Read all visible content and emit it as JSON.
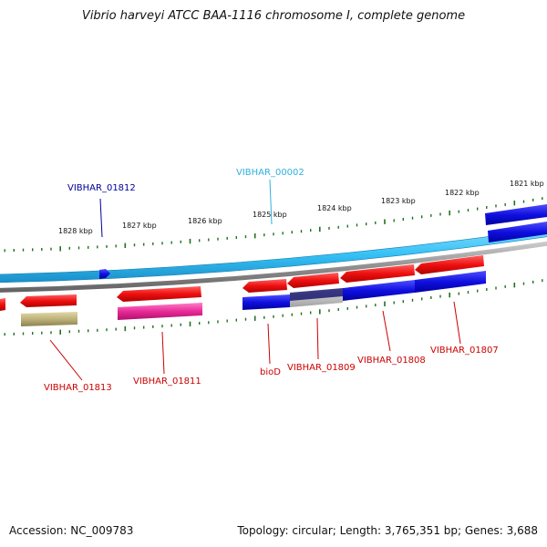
{
  "title": "Vibrio harveyi ATCC BAA-1116 chromosome I, complete genome",
  "footer": {
    "accession": "Accession: NC_009783",
    "stats": "Topology: circular; Length: 3,765,351 bp; Genes: 3,688"
  },
  "ruler_ticks": [
    "1828 kbp",
    "1827 kbp",
    "1826 kbp",
    "1825 kbp",
    "1824 kbp",
    "1823 kbp",
    "1822 kbp",
    "1821 kbp"
  ],
  "gene_labels": [
    "VIBHAR_01812",
    "VIBHAR_00002",
    "VIBHAR_01813",
    "VIBHAR_01811",
    "bioD",
    "VIBHAR_01809",
    "VIBHAR_01808",
    "VIBHAR_01807"
  ],
  "colors": {
    "forward_track": "#2090e0",
    "backbone": "#888888",
    "reverse_gene": "#e01010",
    "blue_gene": "#1010d0",
    "pink_gene": "#e02090",
    "khaki_gene": "#b0a870",
    "tick_green": "#207020",
    "label_red": "#cc0000",
    "label_blue": "#000099",
    "label_cyan": "#30b0e0"
  }
}
